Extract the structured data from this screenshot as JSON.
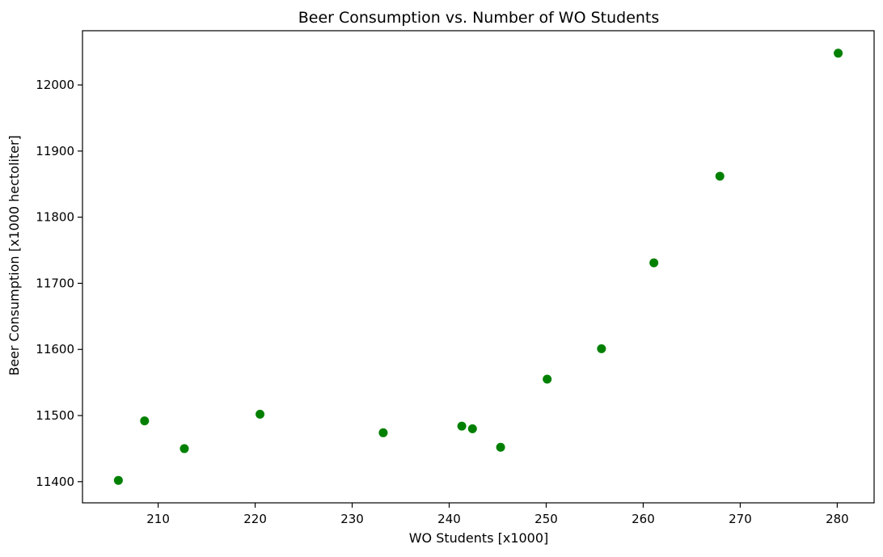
{
  "chart_data": {
    "type": "scatter",
    "title": "Beer Consumption vs. Number of WO Students",
    "xlabel": "WO Students [x1000]",
    "ylabel": "Beer Consumption [x1000 hectoliter]",
    "xlim": [
      202.2,
      283.8
    ],
    "ylim": [
      11368,
      12082
    ],
    "xticks": [
      210,
      220,
      230,
      240,
      250,
      260,
      270,
      280
    ],
    "yticks": [
      11400,
      11500,
      11600,
      11700,
      11800,
      11900,
      12000
    ],
    "grid": false,
    "marker_color": "#008000",
    "series": [
      {
        "x": [
          205.9,
          208.6,
          212.7,
          220.5,
          233.2,
          241.3,
          242.4,
          245.3,
          250.1,
          255.7,
          261.1,
          267.9,
          280.1
        ],
        "y": [
          11402,
          11492,
          11450,
          11502,
          11474,
          11484,
          11480,
          11452,
          11555,
          11601,
          11731,
          11862,
          12048
        ]
      }
    ]
  }
}
